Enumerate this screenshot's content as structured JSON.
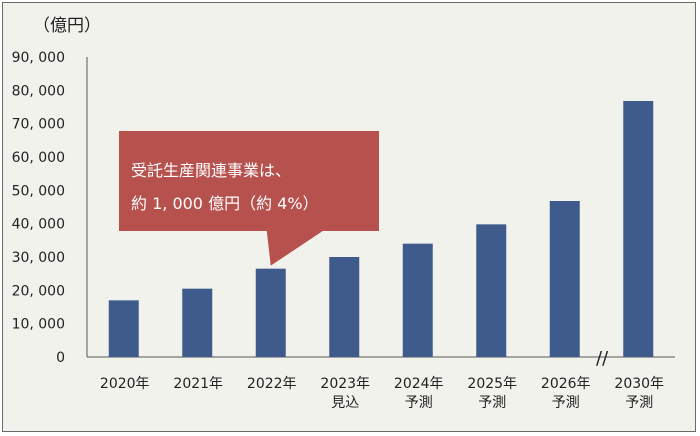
{
  "chart_data": {
    "type": "bar",
    "unit_label": "（億円）",
    "categories": [
      [
        "2020年"
      ],
      [
        "2021年"
      ],
      [
        "2022年"
      ],
      [
        "2023年",
        "見込"
      ],
      [
        "2024年",
        "予測"
      ],
      [
        "2025年",
        "予測"
      ],
      [
        "2026年",
        "予測"
      ],
      [
        "2030年",
        "予測"
      ]
    ],
    "values": [
      17000,
      20500,
      26500,
      30000,
      34000,
      39800,
      46800,
      76800
    ],
    "ylim": [
      0,
      90000
    ],
    "yticks": [
      "0",
      "10, 000",
      "20, 000",
      "30, 000",
      "40, 000",
      "50, 000",
      "60, 000",
      "70, 000",
      "80, 000",
      "90, 000"
    ],
    "grid": false,
    "bar_color": "#3f5b8c",
    "axis_break_mark": "//",
    "annotation": {
      "lines": [
        "受託生産関連事業は、",
        "約 1, 000 億円（約 4%）"
      ],
      "color": "#b6514e",
      "points_to": "2022年"
    }
  }
}
